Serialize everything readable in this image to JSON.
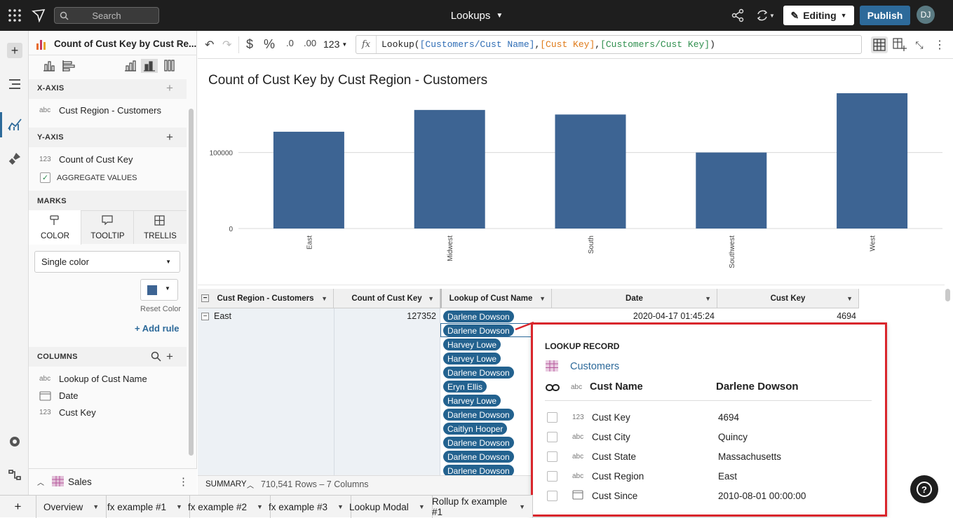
{
  "header": {
    "search_placeholder": "Search",
    "workbook_title": "Lookups",
    "editing_label": "Editing",
    "publish_label": "Publish",
    "user_initials": "DJ"
  },
  "panel": {
    "element_title": "Count of Cust Key by Cust Re...",
    "x_axis": {
      "heading": "X-AXIS",
      "field_type": "abc",
      "field": "Cust Region - Customers"
    },
    "y_axis": {
      "heading": "Y-AXIS",
      "field_type": "123",
      "field": "Count of Cust Key",
      "aggregate_label": "AGGREGATE VALUES"
    },
    "marks": {
      "heading": "MARKS",
      "tabs": [
        "COLOR",
        "TOOLTIP",
        "TRELLIS"
      ],
      "color_mode": "Single color",
      "reset_label": "Reset Color",
      "add_rule_label": "+ Add rule",
      "color": "#3d6493"
    },
    "columns": {
      "heading": "COLUMNS",
      "items": [
        {
          "type": "abc",
          "name": "Lookup of Cust Name"
        },
        {
          "type": "date",
          "name": "Date"
        },
        {
          "type": "123",
          "name": "Cust Key"
        }
      ]
    },
    "source": {
      "name": "Sales"
    }
  },
  "formula": {
    "number_format": "123",
    "prefix": "Lookup(",
    "arg1": "[Customers/Cust Name]",
    "sep1": ", ",
    "arg2": "[Cust Key]",
    "sep2": ", ",
    "arg3": "[Customers/Cust Key]",
    "suffix": ")"
  },
  "chart_data": {
    "type": "bar",
    "title": "Count of Cust Key by Cust Region - Customers",
    "categories": [
      "East",
      "Midwest",
      "South",
      "Southwest",
      "West"
    ],
    "values": [
      127352,
      156000,
      150000,
      100000,
      178000
    ],
    "yticks": [
      "100000",
      "0"
    ],
    "ylim": [
      0,
      190000
    ],
    "grid": true,
    "color": "#3d6493"
  },
  "table": {
    "headers": [
      "Cust Region - Customers",
      "Count of Cust Key",
      "Lookup of Cust Name",
      "Date",
      "Cust Key"
    ],
    "group": "East",
    "count": "127352",
    "date": "2020-04-17 01:45:24",
    "cust_key": "4694",
    "names": [
      "Darlene Dowson",
      "Darlene Dowson",
      "Harvey Lowe",
      "Harvey Lowe",
      "Darlene Dowson",
      "Eryn Ellis",
      "Harvey Lowe",
      "Darlene Dowson",
      "Caitlyn Hooper",
      "Darlene Dowson",
      "Darlene Dowson",
      "Darlene Dowson"
    ]
  },
  "summary": {
    "label": "SUMMARY",
    "rows_cols": "710,541 Rows – 7 Columns"
  },
  "modal": {
    "heading": "LOOKUP RECORD",
    "table_name": "Customers",
    "primary": {
      "type": "abc",
      "label": "Cust Name",
      "value": "Darlene Dowson"
    },
    "fields": [
      {
        "type": "123",
        "label": "Cust Key",
        "value": "4694"
      },
      {
        "type": "abc",
        "label": "Cust City",
        "value": "Quincy"
      },
      {
        "type": "abc",
        "label": "Cust State",
        "value": "Massachusetts"
      },
      {
        "type": "abc",
        "label": "Cust Region",
        "value": "East"
      },
      {
        "type": "date",
        "label": "Cust Since",
        "value": "2010-08-01 00:00:00"
      }
    ]
  },
  "tabs": [
    "Overview",
    "fx example #1",
    "fx example #2",
    "fx example #3",
    "Lookup Modal",
    "Rollup fx example #1"
  ]
}
